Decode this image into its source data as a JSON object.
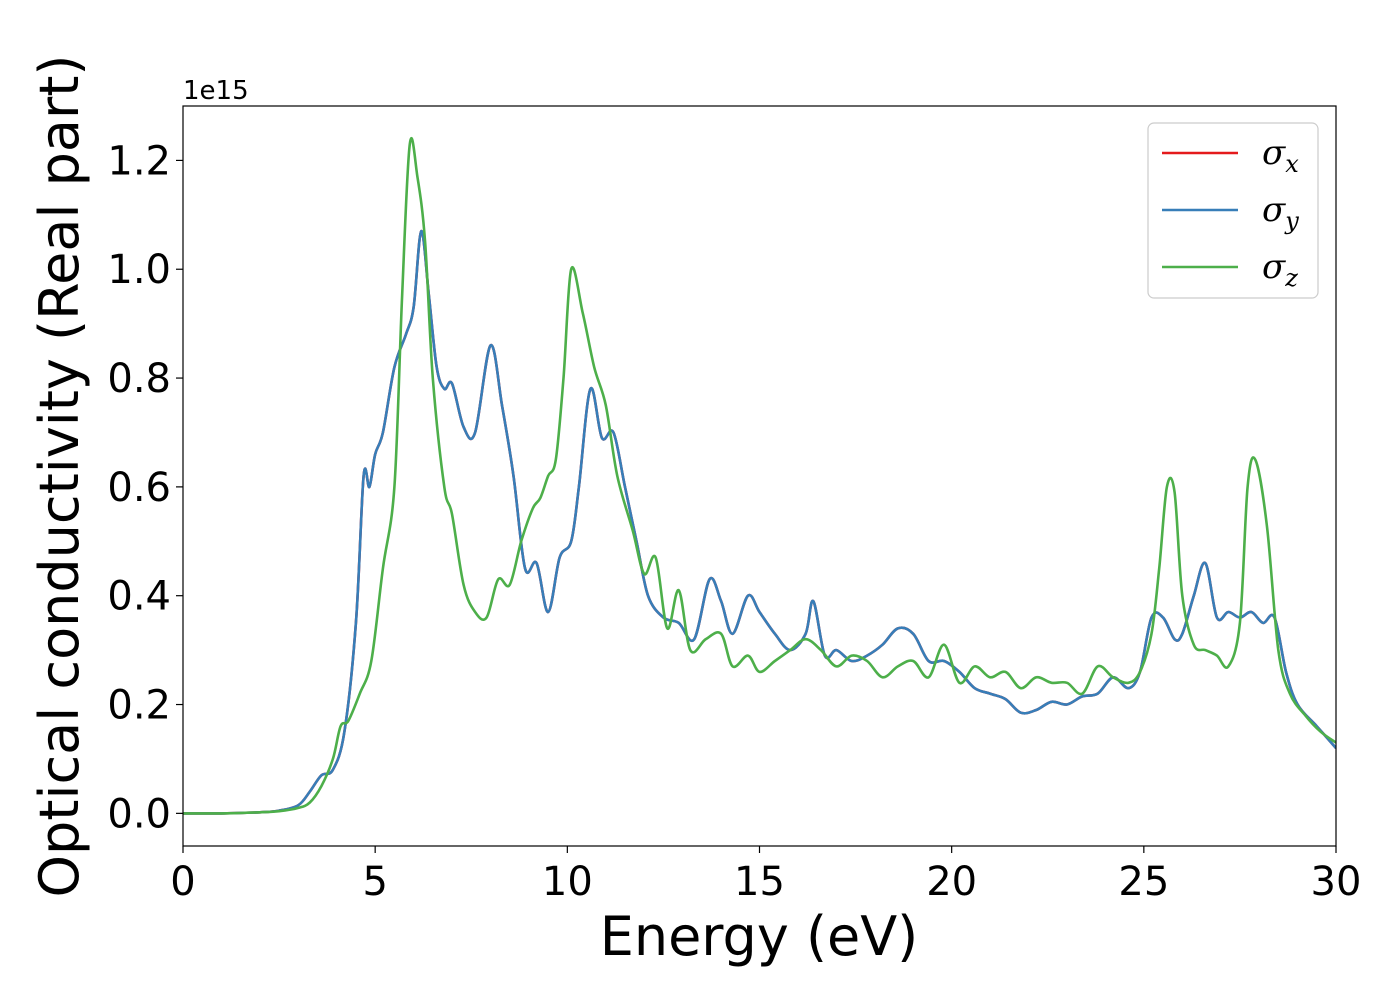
{
  "chart_data": {
    "type": "line",
    "xlabel": "Energy (eV)",
    "ylabel": "Optical conductivity (Real part)",
    "y_offset_label": "1e15",
    "xlim": [
      0,
      30
    ],
    "ylim": [
      -0.06,
      1.3
    ],
    "x_ticks": [
      0,
      5,
      10,
      15,
      20,
      25,
      30
    ],
    "y_ticks": [
      0.0,
      0.2,
      0.4,
      0.6,
      0.8,
      1.0,
      1.2
    ],
    "y_tick_labels": [
      "0.0",
      "0.2",
      "0.4",
      "0.6",
      "0.8",
      "1.0",
      "1.2"
    ],
    "grid": false,
    "legend_position": "top-right",
    "series": [
      {
        "name": "σ",
        "subscript": "x",
        "color": "#e41a1c",
        "x": [
          0,
          1,
          2,
          2.5,
          3,
          3.3,
          3.6,
          3.9,
          4.2,
          4.5,
          4.7,
          4.85,
          5.0,
          5.2,
          5.5,
          5.8,
          6.0,
          6.2,
          6.4,
          6.6,
          6.8,
          7.0,
          7.3,
          7.6,
          8.0,
          8.3,
          8.6,
          8.9,
          9.2,
          9.5,
          9.8,
          10.1,
          10.3,
          10.6,
          10.9,
          11.2,
          11.5,
          11.8,
          12.1,
          12.5,
          12.9,
          13.3,
          13.7,
          14.0,
          14.3,
          14.7,
          15.0,
          15.4,
          15.8,
          16.2,
          16.4,
          16.7,
          17.0,
          17.4,
          17.8,
          18.2,
          18.6,
          19.0,
          19.4,
          19.8,
          20.2,
          20.6,
          21.0,
          21.4,
          21.8,
          22.2,
          22.6,
          23.0,
          23.4,
          23.8,
          24.2,
          24.6,
          24.9,
          25.2,
          25.5,
          25.8,
          26.0,
          26.3,
          26.6,
          26.9,
          27.2,
          27.5,
          27.8,
          28.1,
          28.4,
          28.7,
          29.0,
          29.5,
          30
        ],
        "values": [
          0,
          0,
          0.002,
          0.005,
          0.015,
          0.04,
          0.07,
          0.08,
          0.15,
          0.35,
          0.62,
          0.6,
          0.66,
          0.7,
          0.82,
          0.88,
          0.93,
          1.07,
          0.95,
          0.82,
          0.78,
          0.79,
          0.71,
          0.7,
          0.86,
          0.75,
          0.62,
          0.45,
          0.46,
          0.37,
          0.47,
          0.5,
          0.6,
          0.78,
          0.69,
          0.7,
          0.6,
          0.5,
          0.4,
          0.36,
          0.35,
          0.32,
          0.43,
          0.39,
          0.33,
          0.4,
          0.37,
          0.33,
          0.3,
          0.33,
          0.39,
          0.29,
          0.3,
          0.28,
          0.29,
          0.31,
          0.34,
          0.33,
          0.28,
          0.28,
          0.26,
          0.23,
          0.22,
          0.21,
          0.185,
          0.19,
          0.205,
          0.2,
          0.215,
          0.22,
          0.25,
          0.23,
          0.26,
          0.36,
          0.36,
          0.32,
          0.33,
          0.4,
          0.46,
          0.36,
          0.37,
          0.36,
          0.37,
          0.35,
          0.36,
          0.26,
          0.2,
          0.16,
          0.12
        ]
      },
      {
        "name": "σ",
        "subscript": "y",
        "color": "#377eb8",
        "x": [
          0,
          1,
          2,
          2.5,
          3,
          3.3,
          3.6,
          3.9,
          4.2,
          4.5,
          4.7,
          4.85,
          5.0,
          5.2,
          5.5,
          5.8,
          6.0,
          6.2,
          6.4,
          6.6,
          6.8,
          7.0,
          7.3,
          7.6,
          8.0,
          8.3,
          8.6,
          8.9,
          9.2,
          9.5,
          9.8,
          10.1,
          10.3,
          10.6,
          10.9,
          11.2,
          11.5,
          11.8,
          12.1,
          12.5,
          12.9,
          13.3,
          13.7,
          14.0,
          14.3,
          14.7,
          15.0,
          15.4,
          15.8,
          16.2,
          16.4,
          16.7,
          17.0,
          17.4,
          17.8,
          18.2,
          18.6,
          19.0,
          19.4,
          19.8,
          20.2,
          20.6,
          21.0,
          21.4,
          21.8,
          22.2,
          22.6,
          23.0,
          23.4,
          23.8,
          24.2,
          24.6,
          24.9,
          25.2,
          25.5,
          25.8,
          26.0,
          26.3,
          26.6,
          26.9,
          27.2,
          27.5,
          27.8,
          28.1,
          28.4,
          28.7,
          29.0,
          29.5,
          30
        ],
        "values": [
          0,
          0,
          0.002,
          0.005,
          0.015,
          0.04,
          0.07,
          0.08,
          0.15,
          0.35,
          0.62,
          0.6,
          0.66,
          0.7,
          0.82,
          0.88,
          0.93,
          1.07,
          0.95,
          0.82,
          0.78,
          0.79,
          0.71,
          0.7,
          0.86,
          0.75,
          0.62,
          0.45,
          0.46,
          0.37,
          0.47,
          0.5,
          0.6,
          0.78,
          0.69,
          0.7,
          0.6,
          0.5,
          0.4,
          0.36,
          0.35,
          0.32,
          0.43,
          0.39,
          0.33,
          0.4,
          0.37,
          0.33,
          0.3,
          0.33,
          0.39,
          0.29,
          0.3,
          0.28,
          0.29,
          0.31,
          0.34,
          0.33,
          0.28,
          0.28,
          0.26,
          0.23,
          0.22,
          0.21,
          0.185,
          0.19,
          0.205,
          0.2,
          0.215,
          0.22,
          0.25,
          0.23,
          0.26,
          0.36,
          0.36,
          0.32,
          0.33,
          0.4,
          0.46,
          0.36,
          0.37,
          0.36,
          0.37,
          0.35,
          0.36,
          0.26,
          0.2,
          0.16,
          0.12
        ]
      },
      {
        "name": "σ",
        "subscript": "z",
        "color": "#4daf4a",
        "x": [
          0,
          1,
          2,
          2.5,
          3,
          3.3,
          3.6,
          3.9,
          4.1,
          4.3,
          4.6,
          4.9,
          5.2,
          5.5,
          5.7,
          5.9,
          6.1,
          6.3,
          6.5,
          6.8,
          7.0,
          7.3,
          7.6,
          7.9,
          8.2,
          8.5,
          8.8,
          9.1,
          9.3,
          9.5,
          9.7,
          9.9,
          10.1,
          10.4,
          10.7,
          11.0,
          11.3,
          11.7,
          12.0,
          12.3,
          12.6,
          12.9,
          13.2,
          13.6,
          14.0,
          14.3,
          14.7,
          15.0,
          15.4,
          15.8,
          16.2,
          16.6,
          17.0,
          17.4,
          17.8,
          18.2,
          18.6,
          19.0,
          19.4,
          19.8,
          20.2,
          20.6,
          21.0,
          21.4,
          21.8,
          22.2,
          22.6,
          23.0,
          23.4,
          23.8,
          24.2,
          24.6,
          24.9,
          25.2,
          25.4,
          25.6,
          25.8,
          26.0,
          26.3,
          26.6,
          26.9,
          27.2,
          27.5,
          27.7,
          27.9,
          28.2,
          28.5,
          28.8,
          29.2,
          29.6,
          30
        ],
        "values": [
          0,
          0,
          0.002,
          0.004,
          0.01,
          0.02,
          0.05,
          0.1,
          0.16,
          0.17,
          0.22,
          0.28,
          0.45,
          0.6,
          0.95,
          1.23,
          1.17,
          1.05,
          0.8,
          0.6,
          0.55,
          0.42,
          0.37,
          0.36,
          0.43,
          0.42,
          0.5,
          0.56,
          0.58,
          0.62,
          0.65,
          0.8,
          1.0,
          0.92,
          0.82,
          0.75,
          0.62,
          0.52,
          0.44,
          0.47,
          0.34,
          0.41,
          0.3,
          0.32,
          0.33,
          0.27,
          0.29,
          0.26,
          0.28,
          0.3,
          0.32,
          0.3,
          0.27,
          0.29,
          0.28,
          0.25,
          0.27,
          0.28,
          0.25,
          0.31,
          0.24,
          0.27,
          0.25,
          0.26,
          0.23,
          0.25,
          0.24,
          0.24,
          0.22,
          0.27,
          0.25,
          0.24,
          0.26,
          0.33,
          0.45,
          0.6,
          0.59,
          0.4,
          0.31,
          0.3,
          0.29,
          0.27,
          0.35,
          0.6,
          0.65,
          0.53,
          0.3,
          0.22,
          0.18,
          0.15,
          0.13
        ]
      }
    ]
  }
}
